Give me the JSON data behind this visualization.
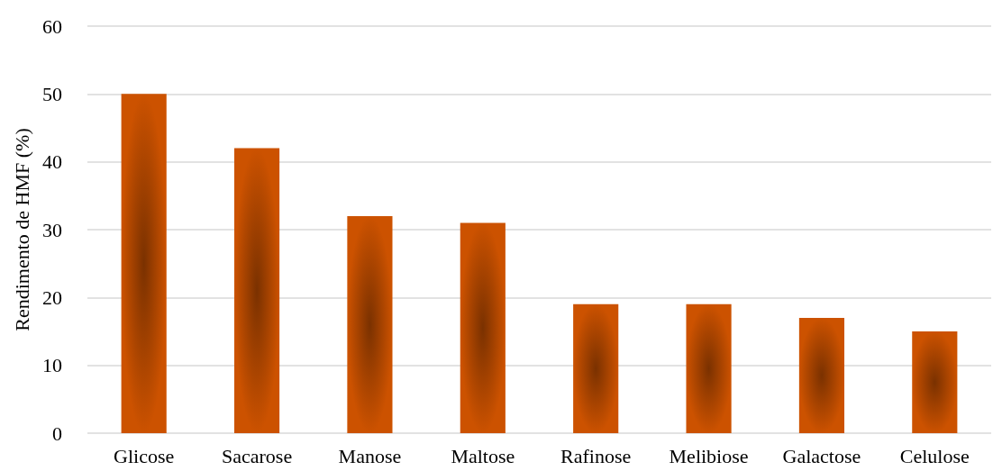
{
  "chart_data": {
    "type": "bar",
    "categories": [
      "Glicose",
      "Sacarose",
      "Manose",
      "Maltose",
      "Rafinose",
      "Melibiose",
      "Galactose",
      "Celulose"
    ],
    "values": [
      50,
      42,
      32,
      31,
      19,
      19,
      17,
      15
    ],
    "color": "#cc5200",
    "ylabel": "Rendimento de HMF (%)",
    "ylim": [
      0,
      60
    ],
    "yticks": [
      0,
      10,
      20,
      30,
      40,
      50,
      60
    ],
    "grid": "y"
  }
}
